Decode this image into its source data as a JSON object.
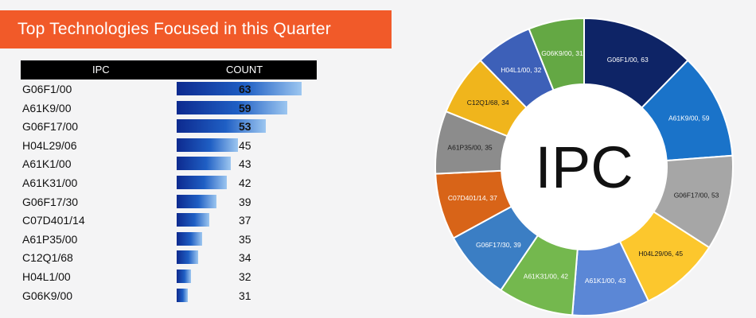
{
  "header": {
    "title": "Top Technologies Focused in this Quarter"
  },
  "table": {
    "col_ipc": "IPC",
    "col_count": "COUNT"
  },
  "donut_center_label": "IPC",
  "chart_data": [
    {
      "type": "bar",
      "title": "Top Technologies Focused in this Quarter",
      "categories": [
        "G06F1/00",
        "A61K9/00",
        "G06F17/00",
        "H04L29/06",
        "A61K1/00",
        "A61K31/00",
        "G06F17/30",
        "C07D401/14",
        "A61P35/00",
        "C12Q1/68",
        "H04L1/00",
        "G06K9/00"
      ],
      "values": [
        63,
        59,
        53,
        45,
        43,
        42,
        39,
        37,
        35,
        34,
        32,
        31
      ],
      "xlabel": "IPC",
      "ylabel": "COUNT"
    },
    {
      "type": "pie",
      "center_label": "IPC",
      "slices": [
        {
          "label": "G06F1/00, 63",
          "value": 63,
          "color": "#0e2466"
        },
        {
          "label": "A61K9/00, 59",
          "value": 59,
          "color": "#1a73c9"
        },
        {
          "label": "G06F17/00, 53",
          "value": 53,
          "color": "#a6a6a6"
        },
        {
          "label": "H04L29/06, 45",
          "value": 45,
          "color": "#fcc72d"
        },
        {
          "label": "A61K1/00, 43",
          "value": 43,
          "color": "#5b87d6"
        },
        {
          "label": "A61K31/00, 42",
          "value": 42,
          "color": "#74b84e"
        },
        {
          "label": "G06F17/30, 39",
          "value": 39,
          "color": "#3b7ec4"
        },
        {
          "label": "C07D401/14, 37",
          "value": 37,
          "color": "#d86418"
        },
        {
          "label": "A61P35/00, 35",
          "value": 35,
          "color": "#8c8c8c"
        },
        {
          "label": "C12Q1/68, 34",
          "value": 34,
          "color": "#f0b51c"
        },
        {
          "label": "H04L1/00, 32",
          "value": 32,
          "color": "#3d60b8"
        },
        {
          "label": "G06K9/00, 31",
          "value": 31,
          "color": "#64a844"
        }
      ]
    }
  ]
}
